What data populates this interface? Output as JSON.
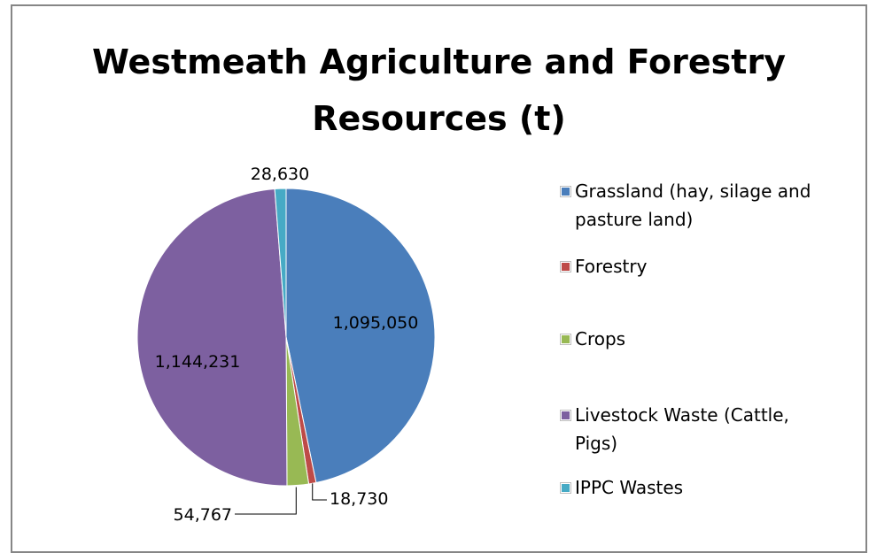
{
  "chart_data": {
    "type": "pie",
    "title": "Westmeath Agriculture and Forestry Resources (t)",
    "title_lines": [
      "Westmeath Agriculture and Forestry",
      "Resources (t)"
    ],
    "slices": [
      {
        "name": "Grassland (hay, silage and pasture land)",
        "value": 1095050,
        "label": "1,095,050",
        "color": "#4a7ebb"
      },
      {
        "name": "Forestry",
        "value": 18730,
        "label": "18,730",
        "color": "#be4b48"
      },
      {
        "name": "Crops",
        "value": 54767,
        "label": "54,767",
        "color": "#98b954"
      },
      {
        "name": "Livestock Waste (Cattle, Pigs)",
        "value": 1144231,
        "label": "1,144,231",
        "color": "#7d60a0"
      },
      {
        "name": "IPPC Wastes",
        "value": 28630,
        "label": "28,630",
        "color": "#46aac5"
      }
    ],
    "legend_position": "right",
    "legend_lines": [
      [
        "Grassland (hay, silage and",
        "pasture land)"
      ],
      [
        "Forestry"
      ],
      [
        "Crops"
      ],
      [
        "Livestock Waste (Cattle,",
        "Pigs)"
      ],
      [
        "IPPC Wastes"
      ]
    ]
  }
}
